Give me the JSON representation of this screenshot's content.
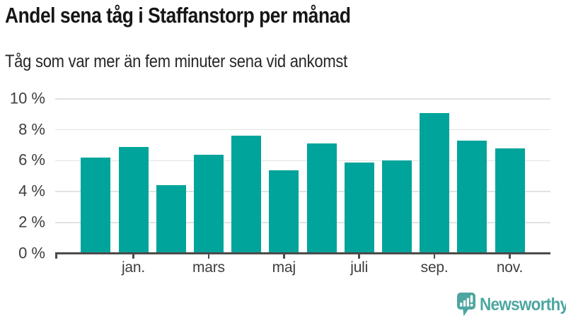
{
  "header": {
    "title": "Andel sena tåg i Staffanstorp per månad",
    "subtitle": "Tåg som var mer än fem minuter sena vid ankomst"
  },
  "chart_data": {
    "type": "bar",
    "title": "Andel sena tåg i Staffanstorp per månad",
    "subtitle": "Tåg som var mer än fem minuter sena vid ankomst",
    "x_labels": [
      "",
      "jan.",
      "",
      "mars",
      "",
      "maj",
      "",
      "juli",
      "",
      "sep.",
      "",
      "nov."
    ],
    "values": [
      6.2,
      6.9,
      4.4,
      6.4,
      7.6,
      5.4,
      7.1,
      5.9,
      6.0,
      9.1,
      7.3,
      6.8
    ],
    "unit": "%",
    "y_ticks": [
      0,
      2,
      4,
      6,
      8,
      10
    ],
    "y_tick_labels": [
      "0 %",
      "2 %",
      "4 %",
      "6 %",
      "8 %",
      "10 %"
    ],
    "ylim": [
      0,
      10
    ],
    "xlabel": "",
    "ylabel": "",
    "grid": true,
    "legend": false,
    "bar_color": "#00a49b"
  },
  "colors": {
    "bar": "#00a49b",
    "grid": "#e2e2e2",
    "axis": "#4b4b4b",
    "axis_text": "#3e3e3e",
    "title_text": "#161616",
    "brand": "#4da6a0"
  },
  "footer": {
    "brand": "Newsworthy"
  }
}
